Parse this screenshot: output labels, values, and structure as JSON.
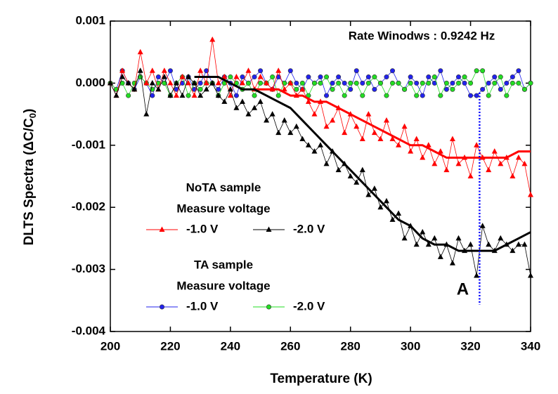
{
  "chart_data": {
    "type": "line",
    "annotation": "Rate Winodws : 0.9242 Hz",
    "x_label": "Temperature (K)",
    "y_label": [
      "DLTS Spectra  (ΔC/C",
      "0",
      ")"
    ],
    "xlim": [
      200,
      340
    ],
    "xticks": [
      200,
      220,
      240,
      260,
      280,
      300,
      320,
      340
    ],
    "ylim": [
      -0.004,
      0.001
    ],
    "yticks": [
      0.001,
      {
        "value": 0,
        "label": "0.000"
      },
      -0.001,
      -0.002,
      -0.003,
      -0.004
    ],
    "legend_groups": [
      {
        "title": "NoTA sample",
        "subtitle": "Measure voltage"
      },
      {
        "title": "TA sample",
        "subtitle": "Measure voltage"
      }
    ],
    "x": [
      200,
      202,
      204,
      206,
      208,
      210,
      212,
      214,
      216,
      218,
      220,
      222,
      224,
      226,
      228,
      230,
      232,
      234,
      236,
      238,
      240,
      242,
      244,
      246,
      248,
      250,
      252,
      254,
      256,
      258,
      260,
      262,
      264,
      266,
      268,
      270,
      272,
      274,
      276,
      278,
      280,
      282,
      284,
      286,
      288,
      290,
      292,
      294,
      296,
      298,
      300,
      302,
      304,
      306,
      308,
      310,
      312,
      314,
      316,
      318,
      320,
      322,
      324,
      326,
      328,
      330,
      332,
      334,
      336,
      338,
      340
    ],
    "series": [
      {
        "name": "-1.0 V",
        "group": 0,
        "marker": "triangle",
        "color": "#ff0000",
        "values": [
          0,
          -0.0002,
          0.0002,
          0,
          -0.0001,
          0.0005,
          0,
          0.0002,
          -0.0001,
          0.0002,
          0,
          -0.0002,
          0.0001,
          0,
          -0.0002,
          0.0002,
          0,
          0.0007,
          0,
          0.0001,
          -0.0002,
          0.0001,
          0,
          0.0002,
          -0.0001,
          0.0001,
          0,
          -0.0001,
          0.0002,
          -0.0001,
          0,
          -0.0002,
          -0.0001,
          -0.0003,
          -0.0005,
          -0.0003,
          -0.0007,
          -0.0006,
          -0.0004,
          -0.0008,
          -0.0005,
          -0.0007,
          -0.0009,
          -0.0005,
          -0.0008,
          -0.0009,
          -0.0006,
          -0.0009,
          -0.001,
          -0.0007,
          -0.0011,
          -0.0009,
          -0.0012,
          -0.001,
          -0.0013,
          -0.0011,
          -0.0014,
          -0.0009,
          -0.0013,
          -0.0012,
          -0.0015,
          -0.001,
          -0.0012,
          -0.0014,
          -0.0011,
          -0.0013,
          -0.0012,
          -0.0015,
          -0.0012,
          -0.0013,
          -0.0018
        ]
      },
      {
        "name": "-2.0 V",
        "group": 0,
        "marker": "triangle",
        "color": "#000000",
        "values": [
          0,
          -0.0002,
          0.0001,
          0,
          -0.0001,
          0.0002,
          -0.0005,
          0,
          -0.0001,
          0.0001,
          -0.0002,
          0,
          -0.0002,
          0.0001,
          0,
          -0.0002,
          -0.0001,
          0,
          -0.0002,
          -0.0003,
          -0.0001,
          -0.0004,
          -0.0003,
          -0.0005,
          -0.0004,
          -0.0003,
          -0.0006,
          -0.0005,
          -0.0008,
          -0.0006,
          -0.0008,
          -0.0007,
          -0.0009,
          -0.001,
          -0.0011,
          -0.001,
          -0.0013,
          -0.0011,
          -0.0014,
          -0.0013,
          -0.0015,
          -0.0016,
          -0.0014,
          -0.0018,
          -0.0017,
          -0.002,
          -0.0019,
          -0.0022,
          -0.0021,
          -0.0025,
          -0.0023,
          -0.0026,
          -0.0024,
          -0.0026,
          -0.0025,
          -0.0028,
          -0.0026,
          -0.0029,
          -0.0025,
          -0.0027,
          -0.0026,
          -0.0031,
          -0.0023,
          -0.0026,
          -0.0027,
          -0.0025,
          -0.0026,
          -0.0027,
          -0.0026,
          -0.0026,
          -0.0031
        ]
      },
      {
        "name": "-1.0 V",
        "group": 1,
        "marker": "circle",
        "color": "#2222ee",
        "values": [
          0,
          -0.0001,
          0.0002,
          0,
          -0.0001,
          0.0001,
          0,
          -0.0002,
          0.0001,
          0,
          0.0002,
          -0.0001,
          0,
          0.0001,
          -0.0001,
          0,
          0.0002,
          0,
          -0.0001,
          0.0001,
          0,
          -0.0002,
          0.0001,
          0,
          0.0001,
          0.0002,
          0,
          -0.0001,
          0.0001,
          0,
          0.0002,
          0,
          -0.0001,
          0.0001,
          0,
          0.0001,
          -0.0002,
          0,
          0.0001,
          0,
          -0.0001,
          0.0002,
          0,
          0.0001,
          -0.0001,
          0,
          0.0001,
          0.0002,
          0,
          -0.0001,
          0.0001,
          0,
          -0.0002,
          0.0001,
          0,
          0.0002,
          -0.0001,
          0,
          0.0001,
          0,
          -0.0002,
          -0.0002,
          -0.0001,
          0,
          0.0001,
          -0.0001,
          0,
          0.0001,
          0.0002,
          -0.0001,
          0
        ]
      },
      {
        "name": "-2.0 V",
        "group": 1,
        "marker": "circle",
        "color": "#22dd22",
        "values": [
          0,
          -0.0001,
          0,
          -0.0002,
          0,
          0.0001,
          0,
          -0.0001,
          0,
          0,
          -0.0002,
          0,
          0.0001,
          -0.0002,
          0,
          -0.0001,
          0,
          0,
          -0.0002,
          0,
          0.0001,
          0,
          -0.0001,
          0,
          -0.0002,
          0,
          0,
          0.0001,
          -0.0002,
          0,
          0,
          -0.0001,
          0,
          -0.0002,
          0,
          0,
          0.0001,
          -0.0001,
          0,
          -0.0002,
          0,
          0,
          -0.0002,
          0,
          0.0001,
          0,
          -0.0002,
          0,
          0,
          -0.0001,
          0,
          -0.0002,
          0,
          0,
          0.0001,
          -0.0002,
          0,
          -0.0001,
          0,
          0.0001,
          0,
          0.0002,
          0.0002,
          -0.0002,
          0,
          0.0001,
          -0.0002,
          0,
          0,
          -0.0001,
          0
        ]
      }
    ],
    "fits": [
      {
        "color": "#ff0000",
        "x": [
          248,
          252,
          256,
          260,
          264,
          268,
          272,
          276,
          280,
          284,
          288,
          292,
          296,
          300,
          304,
          308,
          312,
          316,
          320,
          324,
          328,
          332,
          336,
          340
        ],
        "values": [
          -0.0001,
          -0.0001,
          -0.0001,
          -0.0002,
          -0.0002,
          -0.0003,
          -0.0003,
          -0.0004,
          -0.0005,
          -0.0006,
          -0.0007,
          -0.0008,
          -0.0009,
          -0.001,
          -0.001,
          -0.0011,
          -0.0012,
          -0.0012,
          -0.0012,
          -0.0012,
          -0.0012,
          -0.0012,
          -0.0011,
          -0.0011
        ]
      },
      {
        "color": "#000000",
        "x": [
          228,
          232,
          236,
          240,
          244,
          248,
          252,
          256,
          260,
          264,
          268,
          272,
          276,
          280,
          284,
          288,
          292,
          296,
          300,
          304,
          308,
          312,
          316,
          320,
          324,
          328,
          332,
          336,
          340
        ],
        "values": [
          0.0001,
          0.0001,
          0.0001,
          0,
          -0.0001,
          -0.0001,
          -0.0002,
          -0.0003,
          -0.0004,
          -0.0006,
          -0.0008,
          -0.001,
          -0.0012,
          -0.0014,
          -0.0016,
          -0.0018,
          -0.002,
          -0.0022,
          -0.0023,
          -0.0025,
          -0.0026,
          -0.0026,
          -0.0027,
          -0.0027,
          -0.0027,
          -0.0027,
          -0.0026,
          -0.0025,
          -0.0024
        ]
      }
    ],
    "marker_line": {
      "label": "A",
      "x": 323,
      "color": "#0000ff"
    }
  }
}
